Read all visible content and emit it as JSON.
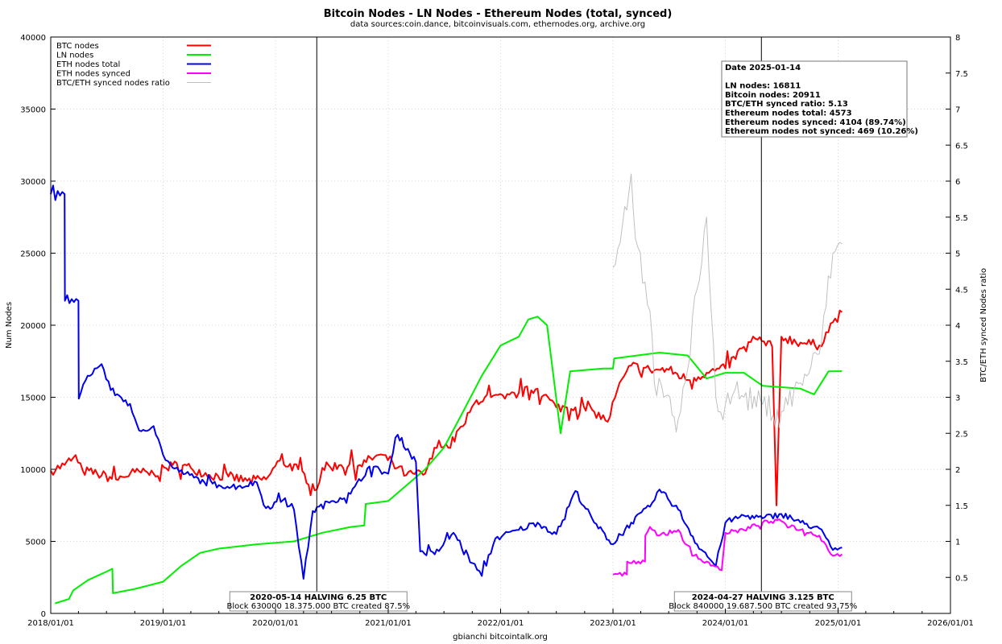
{
  "chart_data": {
    "type": "line",
    "title": "Bitcoin Nodes - LN Nodes - Ethereum Nodes (total, synced)",
    "subtitle": "data sources:coin.dance, bitcoinvisuals.com, ethernodes.org, archive.org",
    "ylabel": "Num Nodes",
    "y2label": "BTC/ETH synced Nodes ratio",
    "credit": "gbianchi bitcointalk.org",
    "xlim": [
      "2018-01-01",
      "2026-01-01"
    ],
    "ylim": [
      0,
      40000
    ],
    "y2lim": [
      0,
      8
    ],
    "grid": true,
    "legend_position": "top-left",
    "x_ticks": [
      "2018/01/01",
      "2019/01/01",
      "2020/01/01",
      "2021/01/01",
      "2022/01/01",
      "2023/01/01",
      "2024/01/01",
      "2025/01/01",
      "2026/01/01"
    ],
    "y_ticks": [
      "0",
      "5000",
      "10000",
      "15000",
      "20000",
      "25000",
      "30000",
      "35000",
      "40000"
    ],
    "y2_ticks": [
      "0.5",
      "1",
      "1.5",
      "2",
      "2.5",
      "3",
      "3.5",
      "4",
      "4.5",
      "5",
      "5.5",
      "6",
      "6.5",
      "7",
      "7.5",
      "8"
    ],
    "series": [
      {
        "name": "BTC nodes",
        "color": "#ff0000",
        "axis": "left",
        "points": [
          [
            "2018-01-01",
            9900
          ],
          [
            "2018-02-15",
            10300
          ],
          [
            "2018-03-15",
            10800
          ],
          [
            "2018-04-15",
            9900
          ],
          [
            "2018-06-01",
            9700
          ],
          [
            "2018-08-01",
            9300
          ],
          [
            "2018-10-01",
            9800
          ],
          [
            "2018-12-01",
            9700
          ],
          [
            "2019-02-01",
            10300
          ],
          [
            "2019-04-01",
            10100
          ],
          [
            "2019-06-01",
            9600
          ],
          [
            "2019-08-01",
            9500
          ],
          [
            "2019-10-01",
            9200
          ],
          [
            "2019-12-01",
            9300
          ],
          [
            "2020-01-15",
            10600
          ],
          [
            "2020-03-15",
            10000
          ],
          [
            "2020-05-14",
            8600
          ],
          [
            "2020-06-01",
            10100
          ],
          [
            "2020-08-01",
            10300
          ],
          [
            "2020-10-01",
            10300
          ],
          [
            "2020-12-01",
            11000
          ],
          [
            "2021-01-15",
            10500
          ],
          [
            "2021-03-01",
            9600
          ],
          [
            "2021-05-01",
            9700
          ],
          [
            "2021-06-15",
            12000
          ],
          [
            "2021-07-15",
            11500
          ],
          [
            "2021-09-01",
            13000
          ],
          [
            "2021-10-15",
            14800
          ],
          [
            "2021-12-01",
            15000
          ],
          [
            "2022-01-15",
            14900
          ],
          [
            "2022-03-01",
            15300
          ],
          [
            "2022-05-01",
            15600
          ],
          [
            "2022-07-01",
            14300
          ],
          [
            "2022-09-01",
            14300
          ],
          [
            "2022-11-01",
            14000
          ],
          [
            "2022-12-15",
            13300
          ],
          [
            "2023-01-15",
            15500
          ],
          [
            "2023-03-01",
            17200
          ],
          [
            "2023-05-01",
            16900
          ],
          [
            "2023-07-01",
            16900
          ],
          [
            "2023-09-01",
            16200
          ],
          [
            "2023-11-01",
            16700
          ],
          [
            "2024-01-01",
            17000
          ],
          [
            "2024-03-01",
            18500
          ],
          [
            "2024-04-15",
            19000
          ],
          [
            "2024-06-01",
            18500
          ],
          [
            "2024-06-15",
            7500
          ],
          [
            "2024-07-01",
            19200
          ],
          [
            "2024-09-01",
            18800
          ],
          [
            "2024-11-01",
            18600
          ],
          [
            "2024-12-15",
            20200
          ],
          [
            "2025-01-14",
            20911
          ]
        ]
      },
      {
        "name": "LN nodes",
        "color": "#00ee00",
        "axis": "left",
        "points": [
          [
            "2018-01-15",
            700
          ],
          [
            "2018-03-01",
            1000
          ],
          [
            "2018-03-15",
            1600
          ],
          [
            "2018-05-01",
            2300
          ],
          [
            "2018-07-01",
            2900
          ],
          [
            "2018-07-20",
            3100
          ],
          [
            "2018-07-22",
            1400
          ],
          [
            "2018-10-01",
            1700
          ],
          [
            "2019-01-01",
            2200
          ],
          [
            "2019-03-01",
            3300
          ],
          [
            "2019-05-01",
            4200
          ],
          [
            "2019-07-01",
            4500
          ],
          [
            "2019-11-01",
            4800
          ],
          [
            "2020-03-01",
            5000
          ],
          [
            "2020-06-01",
            5600
          ],
          [
            "2020-09-01",
            6000
          ],
          [
            "2020-10-15",
            6100
          ],
          [
            "2020-10-20",
            7600
          ],
          [
            "2021-01-01",
            7800
          ],
          [
            "2021-05-01",
            10000
          ],
          [
            "2021-07-01",
            11500
          ],
          [
            "2021-09-01",
            14000
          ],
          [
            "2021-11-01",
            16500
          ],
          [
            "2022-01-01",
            18600
          ],
          [
            "2022-03-01",
            19200
          ],
          [
            "2022-04-01",
            20400
          ],
          [
            "2022-05-01",
            20600
          ],
          [
            "2022-06-01",
            20000
          ],
          [
            "2022-07-15",
            12500
          ],
          [
            "2022-08-15",
            16800
          ],
          [
            "2022-12-01",
            17000
          ],
          [
            "2023-01-01",
            17000
          ],
          [
            "2023-01-05",
            17700
          ],
          [
            "2023-06-01",
            18100
          ],
          [
            "2023-09-01",
            17900
          ],
          [
            "2023-11-01",
            16300
          ],
          [
            "2024-01-01",
            16700
          ],
          [
            "2024-03-01",
            16700
          ],
          [
            "2024-05-01",
            15800
          ],
          [
            "2024-09-01",
            15600
          ],
          [
            "2024-10-15",
            15200
          ],
          [
            "2024-12-01",
            16800
          ],
          [
            "2025-01-14",
            16811
          ]
        ]
      },
      {
        "name": "ETH nodes total",
        "color": "#0000ee",
        "axis": "left",
        "points": [
          [
            "2018-01-01",
            29100
          ],
          [
            "2018-02-15",
            29100
          ],
          [
            "2018-02-16",
            21700
          ],
          [
            "2018-04-01",
            21700
          ],
          [
            "2018-04-02",
            14900
          ],
          [
            "2018-05-01",
            16500
          ],
          [
            "2018-06-15",
            17300
          ],
          [
            "2018-07-15",
            15500
          ],
          [
            "2018-09-01",
            14800
          ],
          [
            "2018-10-15",
            12700
          ],
          [
            "2018-12-01",
            13000
          ],
          [
            "2019-01-01",
            11000
          ],
          [
            "2019-02-01",
            10100
          ],
          [
            "2019-03-15",
            9700
          ],
          [
            "2019-05-15",
            9100
          ],
          [
            "2019-07-01",
            8900
          ],
          [
            "2019-09-01",
            8800
          ],
          [
            "2019-11-01",
            9100
          ],
          [
            "2019-12-01",
            7300
          ],
          [
            "2020-02-01",
            8000
          ],
          [
            "2020-03-01",
            7200
          ],
          [
            "2020-04-01",
            2400
          ],
          [
            "2020-05-01",
            7100
          ],
          [
            "2020-07-01",
            7800
          ],
          [
            "2020-09-01",
            8300
          ],
          [
            "2020-11-01",
            10200
          ],
          [
            "2021-01-01",
            9700
          ],
          [
            "2021-02-01",
            12400
          ],
          [
            "2021-04-01",
            10500
          ],
          [
            "2021-04-15",
            4300
          ],
          [
            "2021-06-01",
            4100
          ],
          [
            "2021-08-01",
            5600
          ],
          [
            "2021-10-01",
            3500
          ],
          [
            "2021-11-01",
            2600
          ],
          [
            "2021-12-15",
            5200
          ],
          [
            "2022-03-01",
            5800
          ],
          [
            "2022-05-01",
            6300
          ],
          [
            "2022-07-01",
            5500
          ],
          [
            "2022-09-01",
            8500
          ],
          [
            "2022-11-01",
            6300
          ],
          [
            "2023-01-01",
            4800
          ],
          [
            "2023-03-01",
            6300
          ],
          [
            "2023-05-01",
            7400
          ],
          [
            "2023-06-01",
            8600
          ],
          [
            "2023-08-01",
            7200
          ],
          [
            "2023-10-01",
            4800
          ],
          [
            "2023-12-01",
            3300
          ],
          [
            "2024-01-01",
            6300
          ],
          [
            "2024-03-01",
            6800
          ],
          [
            "2024-05-01",
            6600
          ],
          [
            "2024-07-01",
            6900
          ],
          [
            "2024-09-01",
            6300
          ],
          [
            "2024-11-01",
            5900
          ],
          [
            "2024-12-15",
            4400
          ],
          [
            "2025-01-14",
            4573
          ]
        ]
      },
      {
        "name": "ETH nodes synced",
        "color": "#ff00ff",
        "axis": "left",
        "points": [
          [
            "2023-01-01",
            2700
          ],
          [
            "2023-02-15",
            2700
          ],
          [
            "2023-02-16",
            3600
          ],
          [
            "2023-04-15",
            3600
          ],
          [
            "2023-04-16",
            5400
          ],
          [
            "2023-05-01",
            6000
          ],
          [
            "2023-06-01",
            5400
          ],
          [
            "2023-08-01",
            5800
          ],
          [
            "2023-09-15",
            4000
          ],
          [
            "2023-11-01",
            3600
          ],
          [
            "2023-12-20",
            3000
          ],
          [
            "2024-01-01",
            5600
          ],
          [
            "2024-03-01",
            5800
          ],
          [
            "2024-05-01",
            6300
          ],
          [
            "2024-07-01",
            6400
          ],
          [
            "2024-09-01",
            5800
          ],
          [
            "2024-11-01",
            5400
          ],
          [
            "2024-12-15",
            4000
          ],
          [
            "2025-01-14",
            4104
          ]
        ]
      },
      {
        "name": "BTC/ETH synced nodes ratio",
        "color": "#c0c0c0",
        "axis": "right",
        "points": [
          [
            "2023-01-01",
            4.8
          ],
          [
            "2023-02-01",
            5.4
          ],
          [
            "2023-03-01",
            6.1
          ],
          [
            "2023-03-15",
            5.2
          ],
          [
            "2023-04-15",
            4.6
          ],
          [
            "2023-05-01",
            4.2
          ],
          [
            "2023-05-15",
            3.2
          ],
          [
            "2023-06-15",
            3.0
          ],
          [
            "2023-08-01",
            2.7
          ],
          [
            "2023-09-01",
            3.4
          ],
          [
            "2023-10-01",
            4.5
          ],
          [
            "2023-11-01",
            5.5
          ],
          [
            "2023-12-01",
            3.0
          ],
          [
            "2024-01-01",
            2.9
          ],
          [
            "2024-02-01",
            3.1
          ],
          [
            "2024-03-01",
            3.0
          ],
          [
            "2024-05-01",
            2.9
          ],
          [
            "2024-07-01",
            2.8
          ],
          [
            "2024-09-01",
            3.2
          ],
          [
            "2024-11-01",
            3.6
          ],
          [
            "2024-12-15",
            5.0
          ],
          [
            "2025-01-14",
            5.13
          ]
        ]
      }
    ],
    "vertical_lines": [
      {
        "date": "2020-05-14",
        "title": "2020-05-14 HALVING 6.25 BTC",
        "subtitle": "Block 630000 18.375.000 BTC created 87.5%"
      },
      {
        "date": "2024-04-27",
        "title": "2024-04-27 HALVING 3.125 BTC",
        "subtitle": "Block 840000 19.687.500 BTC created 93.75%"
      }
    ],
    "info_box": [
      "Date 2025-01-14",
      "",
      "LN nodes: 16811",
      "Bitcoin nodes: 20911",
      "BTC/ETH synced ratio: 5.13",
      "Ethereum nodes total: 4573",
      "Ethereum nodes synced: 4104 (89.74%)",
      "Ethereum nodes not synced: 469 (10.26%)"
    ]
  }
}
